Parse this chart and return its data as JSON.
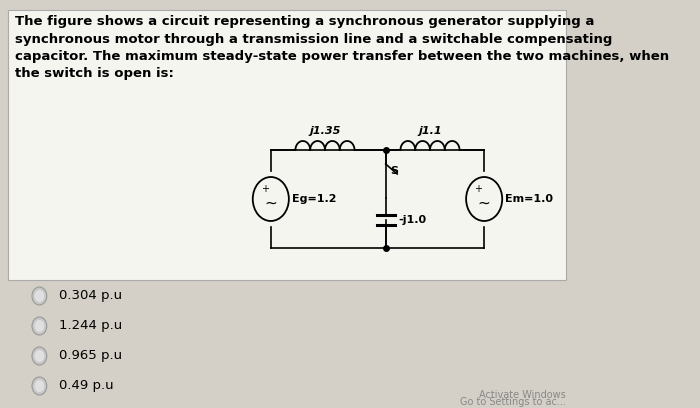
{
  "background_color": "#d4d0c8",
  "panel_color": "#f5f5f0",
  "text_color": "#000000",
  "title_text": "The figure shows a circuit representing a synchronous generator supplying a\nsynchronous motor through a transmission line and a switchable compensating\ncapacitor. The maximum steady-state power transfer between the two machines, when\nthe switch is open is:",
  "circuit": {
    "inductor1_label": "j1.35",
    "inductor2_label": "j1.1",
    "switch_label": "S",
    "capacitor_label": "-j1.0",
    "generator_label": "Eg=1.2",
    "motor_label": "Em=1.0"
  },
  "options": [
    "0.304 p.u",
    "1.244 p.u",
    "0.965 p.u",
    "0.49 p.u"
  ],
  "watermark_line1": "Activate Windows",
  "watermark_line2": "Go to Settings to ac...",
  "font_size_title": 9.5,
  "font_size_circuit": 8,
  "font_size_options": 9.5
}
